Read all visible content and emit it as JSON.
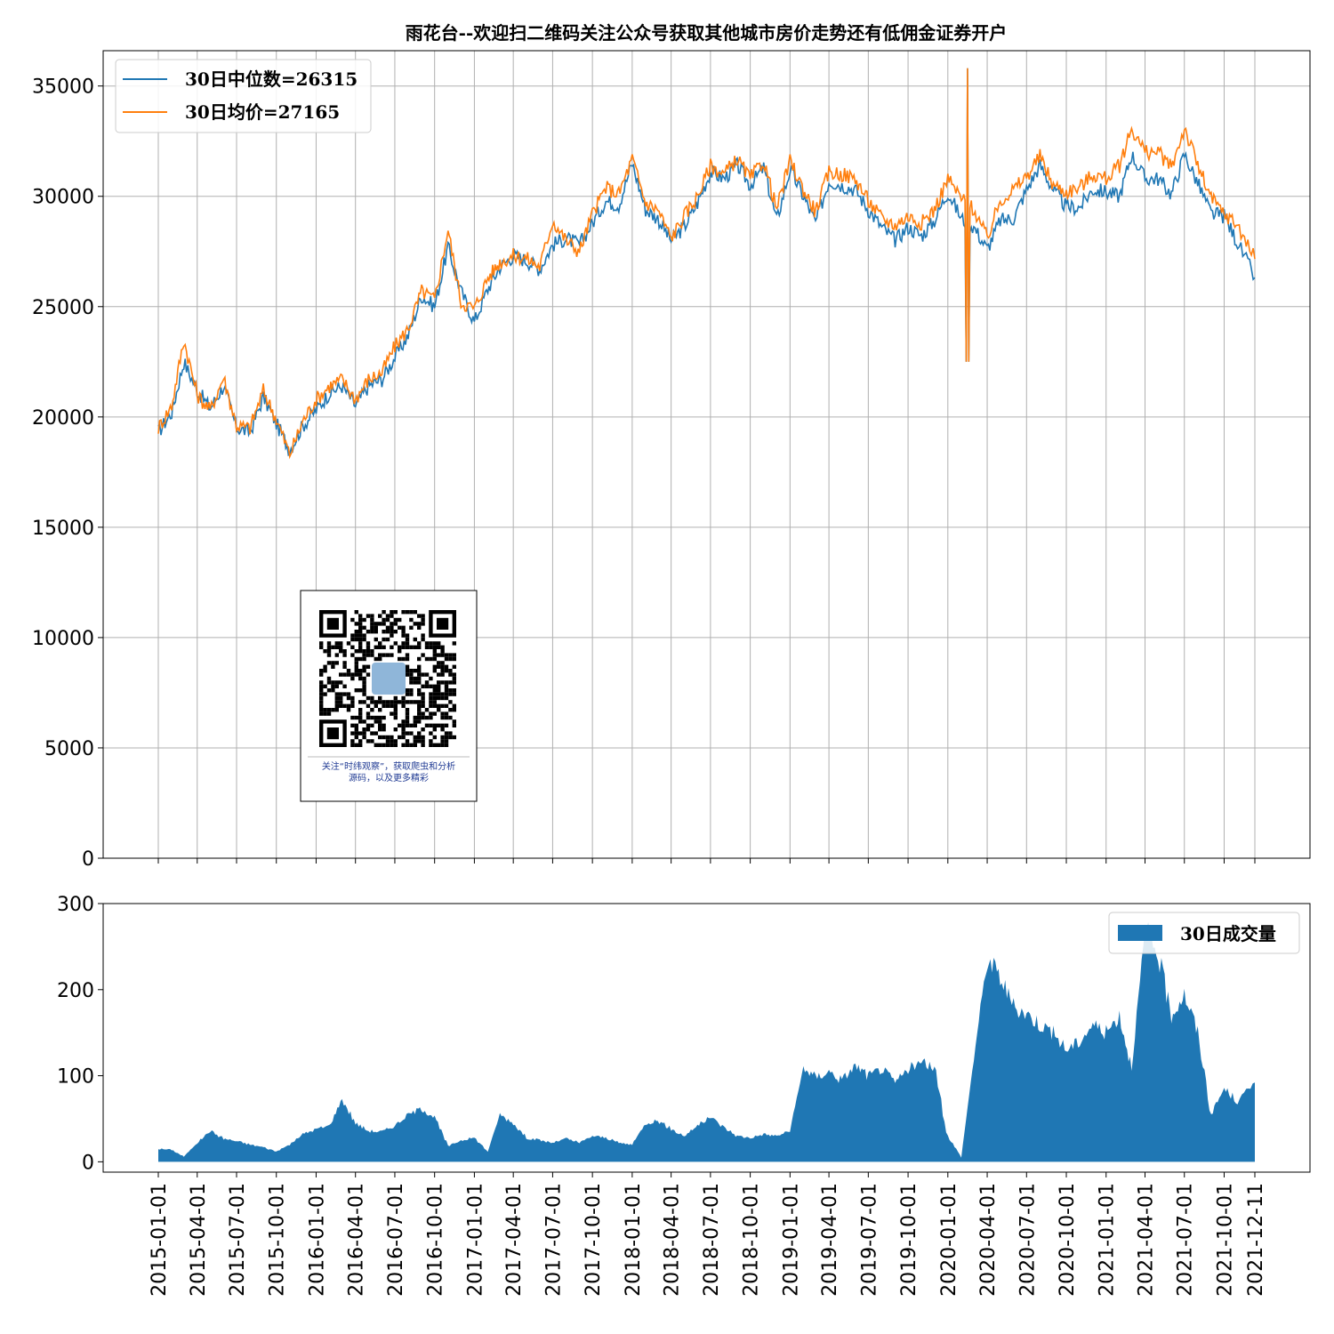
{
  "chart_data": [
    {
      "type": "line",
      "title": "雨花台--欢迎扫二维码关注公众号获取其他城市房价走势还有低佣金证券开户",
      "xlabel": "",
      "ylabel": "",
      "ylim": [
        0,
        36600
      ],
      "yticks": [
        0,
        5000,
        10000,
        15000,
        20000,
        25000,
        30000,
        35000
      ],
      "grid": true,
      "legend_position": "top-left",
      "x_dates": [
        "2015-01-01",
        "2015-02-01",
        "2015-03-01",
        "2015-04-01",
        "2015-05-01",
        "2015-06-01",
        "2015-07-01",
        "2015-08-01",
        "2015-09-01",
        "2015-10-01",
        "2015-11-01",
        "2015-12-01",
        "2016-01-01",
        "2016-02-01",
        "2016-03-01",
        "2016-04-01",
        "2016-05-01",
        "2016-06-01",
        "2016-07-01",
        "2016-08-01",
        "2016-09-01",
        "2016-10-01",
        "2016-11-01",
        "2016-12-01",
        "2017-01-01",
        "2017-02-01",
        "2017-03-01",
        "2017-04-01",
        "2017-05-01",
        "2017-06-01",
        "2017-07-01",
        "2017-08-01",
        "2017-09-01",
        "2017-10-01",
        "2017-11-01",
        "2017-12-01",
        "2018-01-01",
        "2018-02-01",
        "2018-03-01",
        "2018-04-01",
        "2018-05-01",
        "2018-06-01",
        "2018-07-01",
        "2018-08-01",
        "2018-09-01",
        "2018-10-01",
        "2018-11-01",
        "2018-12-01",
        "2019-01-01",
        "2019-02-01",
        "2019-03-01",
        "2019-04-01",
        "2019-05-01",
        "2019-06-01",
        "2019-07-01",
        "2019-08-01",
        "2019-09-01",
        "2019-10-01",
        "2019-11-01",
        "2019-12-01",
        "2020-01-01",
        "2020-02-01",
        "2020-03-01",
        "2020-04-01",
        "2020-05-01",
        "2020-06-01",
        "2020-07-01",
        "2020-08-01",
        "2020-09-01",
        "2020-10-01",
        "2020-11-01",
        "2020-12-01",
        "2021-01-01",
        "2021-02-01",
        "2021-03-01",
        "2021-04-01",
        "2021-05-01",
        "2021-06-01",
        "2021-07-01",
        "2021-08-01",
        "2021-09-01",
        "2021-10-01",
        "2021-11-01",
        "2021-12-11"
      ],
      "series": [
        {
          "name": "30日中位数=26315",
          "color": "#1f77b4",
          "values": [
            19300,
            20200,
            22500,
            21200,
            20400,
            21400,
            19500,
            19300,
            20900,
            19700,
            18500,
            19600,
            20300,
            21100,
            21400,
            20500,
            21400,
            21700,
            22700,
            23700,
            25500,
            25000,
            27700,
            25700,
            24300,
            25800,
            26800,
            27300,
            27100,
            26700,
            27800,
            28100,
            27800,
            28800,
            29800,
            29600,
            31500,
            29400,
            29000,
            28000,
            28600,
            29700,
            31100,
            30800,
            31400,
            30500,
            31300,
            28900,
            31200,
            30000,
            28800,
            30700,
            30500,
            30300,
            29400,
            28600,
            28000,
            28600,
            28200,
            28900,
            30200,
            29000,
            28600,
            27600,
            28900,
            29000,
            30300,
            31400,
            30300,
            29500,
            29500,
            30300,
            30200,
            30000,
            31900,
            30800,
            30800,
            30100,
            31900,
            30600,
            29200,
            29100,
            27900,
            26315
          ]
        },
        {
          "name": "30日均价=27165",
          "color": "#ff7f0e",
          "values": [
            19500,
            20500,
            23500,
            21000,
            20300,
            21800,
            19600,
            19500,
            21200,
            19900,
            18300,
            19800,
            20800,
            21400,
            21700,
            20800,
            21700,
            22000,
            23200,
            24000,
            25700,
            25300,
            28500,
            25200,
            24900,
            26300,
            27000,
            27300,
            27200,
            26800,
            28900,
            28000,
            27500,
            29200,
            30400,
            30100,
            31700,
            29700,
            29400,
            28100,
            29100,
            30000,
            31400,
            31000,
            31700,
            30800,
            31600,
            29400,
            31600,
            30300,
            29300,
            31100,
            31000,
            30800,
            29800,
            29000,
            28700,
            29100,
            28800,
            29400,
            30800,
            29900,
            29400,
            28100,
            29800,
            30300,
            30900,
            31800,
            30500,
            30200,
            30400,
            31000,
            30800,
            31400,
            33100,
            32000,
            32000,
            31300,
            33100,
            31400,
            29900,
            29200,
            28700,
            27165
          ]
        }
      ],
      "spike": {
        "date": "2020-02-15",
        "high": 35800,
        "low": 22500
      }
    },
    {
      "type": "area",
      "title": "",
      "xlabel": "",
      "ylabel": "",
      "ylim": [
        -12,
        300
      ],
      "yticks": [
        0,
        100,
        200,
        300
      ],
      "grid": false,
      "legend_position": "top-right",
      "x_dates": [
        "2015-01-01",
        "2015-02-01",
        "2015-03-01",
        "2015-04-01",
        "2015-05-01",
        "2015-06-01",
        "2015-07-01",
        "2015-08-01",
        "2015-09-01",
        "2015-10-01",
        "2015-11-01",
        "2015-12-01",
        "2016-01-01",
        "2016-02-01",
        "2016-03-01",
        "2016-04-01",
        "2016-05-01",
        "2016-06-01",
        "2016-07-01",
        "2016-08-01",
        "2016-09-01",
        "2016-10-01",
        "2016-11-01",
        "2016-12-01",
        "2017-01-01",
        "2017-02-01",
        "2017-03-01",
        "2017-04-01",
        "2017-05-01",
        "2017-06-01",
        "2017-07-01",
        "2017-08-01",
        "2017-09-01",
        "2017-10-01",
        "2017-11-01",
        "2017-12-01",
        "2018-01-01",
        "2018-02-01",
        "2018-03-01",
        "2018-04-01",
        "2018-05-01",
        "2018-06-01",
        "2018-07-01",
        "2018-08-01",
        "2018-09-01",
        "2018-10-01",
        "2018-11-01",
        "2018-12-01",
        "2019-01-01",
        "2019-02-01",
        "2019-03-01",
        "2019-04-01",
        "2019-05-01",
        "2019-06-01",
        "2019-07-01",
        "2019-08-01",
        "2019-09-01",
        "2019-10-01",
        "2019-11-01",
        "2019-12-01",
        "2020-01-01",
        "2020-02-01",
        "2020-03-01",
        "2020-04-01",
        "2020-05-01",
        "2020-06-01",
        "2020-07-01",
        "2020-08-01",
        "2020-09-01",
        "2020-10-01",
        "2020-11-01",
        "2020-12-01",
        "2021-01-01",
        "2021-02-01",
        "2021-03-01",
        "2021-04-01",
        "2021-05-01",
        "2021-06-01",
        "2021-07-01",
        "2021-08-01",
        "2021-09-01",
        "2021-10-01",
        "2021-11-01",
        "2021-12-11"
      ],
      "series": [
        {
          "name": "30日成交量",
          "color": "#1f77b4",
          "values": [
            15,
            14,
            6,
            22,
            36,
            27,
            24,
            20,
            17,
            12,
            20,
            32,
            38,
            42,
            73,
            45,
            36,
            35,
            42,
            55,
            62,
            52,
            18,
            25,
            28,
            12,
            55,
            45,
            28,
            25,
            22,
            27,
            22,
            30,
            28,
            22,
            20,
            45,
            48,
            38,
            30,
            42,
            52,
            40,
            30,
            28,
            32,
            30,
            36,
            110,
            98,
            105,
            95,
            112,
            100,
            108,
            92,
            108,
            115,
            110,
            30,
            5,
            120,
            235,
            215,
            180,
            172,
            160,
            150,
            130,
            140,
            160,
            150,
            170,
            110,
            270,
            240,
            170,
            195,
            150,
            55,
            85,
            70,
            92
          ]
        }
      ]
    }
  ],
  "qr_caption_lines": [
    "关注“时纬观察”，获取爬虫和分析",
    "源码，以及更多精彩"
  ]
}
